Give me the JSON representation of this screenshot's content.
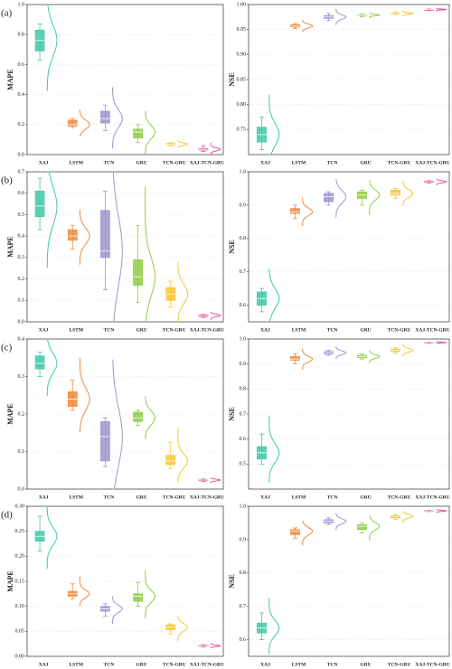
{
  "chart_data": [
    {
      "type": "box",
      "panel": "(a)",
      "ylabel": "MAPE",
      "categories": [
        "XAJ",
        "LSTM",
        "TCN",
        "GRU",
        "TCN-GRU",
        "XAJ-TCN-GRU"
      ],
      "colors": [
        "#3ec9a7",
        "#f08a3c",
        "#9d94cc",
        "#8fcc45",
        "#f5c533",
        "#e0589a"
      ],
      "ylim": [
        0,
        1
      ],
      "yticks": [
        {
          "value": 0,
          "label": "0.0"
        },
        0.2,
        0.4,
        0.6,
        0.8,
        {
          "value": 1,
          "label": "1.0"
        }
      ],
      "boxes": [
        {
          "min": 0.63,
          "q1": 0.69,
          "median": 0.76,
          "q3": 0.83,
          "max": 0.87
        },
        {
          "min": 0.18,
          "q1": 0.19,
          "median": 0.2,
          "q3": 0.23,
          "max": 0.24
        },
        {
          "min": 0.16,
          "q1": 0.21,
          "median": 0.24,
          "q3": 0.29,
          "max": 0.33
        },
        {
          "min": 0.08,
          "q1": 0.11,
          "median": 0.15,
          "q3": 0.17,
          "max": 0.2
        },
        {
          "min": 0.06,
          "q1": 0.065,
          "median": 0.07,
          "q3": 0.075,
          "max": 0.08
        },
        {
          "min": 0.02,
          "q1": 0.03,
          "median": 0.035,
          "q3": 0.04,
          "max": 0.06
        }
      ]
    },
    {
      "type": "box",
      "ylabel": "NSE",
      "categories": [
        "XAJ",
        "LSTM",
        "TCN",
        "GRU",
        "TCN-GRU",
        "XAJ-TCN-GRU"
      ],
      "colors": [
        "#3ec9a7",
        "#f08a3c",
        "#9d94cc",
        "#8fcc45",
        "#f5c533",
        "#e0589a"
      ],
      "ylim": [
        0.7,
        1
      ],
      "yticks": [
        0.75,
        {
          "value": 0.8,
          "label": "0.80"
        },
        0.85,
        {
          "value": 0.9,
          "label": "0.90"
        },
        0.95,
        {
          "value": 1,
          "label": "1.00"
        }
      ],
      "boxes": [
        {
          "min": 0.71,
          "q1": 0.725,
          "median": 0.74,
          "q3": 0.755,
          "max": 0.775
        },
        {
          "min": 0.952,
          "q1": 0.955,
          "median": 0.957,
          "q3": 0.96,
          "max": 0.962
        },
        {
          "min": 0.968,
          "q1": 0.972,
          "median": 0.975,
          "q3": 0.978,
          "max": 0.982
        },
        {
          "min": 0.976,
          "q1": 0.978,
          "median": 0.979,
          "q3": 0.98,
          "max": 0.981
        },
        {
          "min": 0.98,
          "q1": 0.981,
          "median": 0.982,
          "q3": 0.983,
          "max": 0.985
        },
        {
          "min": 0.988,
          "q1": 0.989,
          "median": 0.99,
          "q3": 0.99,
          "max": 0.991
        }
      ]
    },
    {
      "type": "box",
      "panel": "(b)",
      "ylabel": "MAPE",
      "categories": [
        "XAJ",
        "LSTM",
        "TCN",
        "GRU",
        "TCN-GRU",
        "XAJ-TCN-GRU"
      ],
      "colors": [
        "#3ec9a7",
        "#f08a3c",
        "#9d94cc",
        "#8fcc45",
        "#f5c533",
        "#e0589a"
      ],
      "ylim": [
        0,
        0.7
      ],
      "yticks": [
        {
          "value": 0,
          "label": "0.0"
        },
        0.1,
        0.2,
        0.3,
        0.4,
        0.5,
        0.6,
        0.7
      ],
      "boxes": [
        {
          "min": 0.43,
          "q1": 0.49,
          "median": 0.54,
          "q3": 0.61,
          "max": 0.67
        },
        {
          "min": 0.34,
          "q1": 0.38,
          "median": 0.4,
          "q3": 0.43,
          "max": 0.45
        },
        {
          "min": 0.15,
          "q1": 0.3,
          "median": 0.33,
          "q3": 0.52,
          "max": 0.61
        },
        {
          "min": 0.09,
          "q1": 0.17,
          "median": 0.21,
          "q3": 0.29,
          "max": 0.45
        },
        {
          "min": 0.07,
          "q1": 0.1,
          "median": 0.13,
          "q3": 0.16,
          "max": 0.19
        },
        {
          "min": 0.02,
          "q1": 0.025,
          "median": 0.03,
          "q3": 0.033,
          "max": 0.035
        }
      ]
    },
    {
      "type": "box",
      "ylabel": "NSE",
      "categories": [
        "XAJ",
        "LSTM",
        "TCN",
        "GRU",
        "TCN-GRU",
        "XAJ-TCN-GRU"
      ],
      "colors": [
        "#3ec9a7",
        "#f08a3c",
        "#9d94cc",
        "#8fcc45",
        "#f5c533",
        "#e0589a"
      ],
      "ylim": [
        0.55,
        1
      ],
      "yticks": [
        0.6,
        0.7,
        0.8,
        0.9,
        {
          "value": 1,
          "label": "1.0"
        }
      ],
      "boxes": [
        {
          "min": 0.58,
          "q1": 0.6,
          "median": 0.62,
          "q3": 0.64,
          "max": 0.65
        },
        {
          "min": 0.86,
          "q1": 0.875,
          "median": 0.88,
          "q3": 0.89,
          "max": 0.9
        },
        {
          "min": 0.9,
          "q1": 0.91,
          "median": 0.925,
          "q3": 0.935,
          "max": 0.94
        },
        {
          "min": 0.9,
          "q1": 0.92,
          "median": 0.93,
          "q3": 0.94,
          "max": 0.945
        },
        {
          "min": 0.92,
          "q1": 0.93,
          "median": 0.935,
          "q3": 0.945,
          "max": 0.95
        },
        {
          "min": 0.966,
          "q1": 0.968,
          "median": 0.97,
          "q3": 0.972,
          "max": 0.973
        }
      ]
    },
    {
      "type": "box",
      "panel": "(c)",
      "ylabel": "MAPE",
      "categories": [
        "XAJ",
        "LSTM",
        "TCN",
        "GRU",
        "TCN-GRU",
        "XAJ-TCN-GRU"
      ],
      "colors": [
        "#3ec9a7",
        "#f08a3c",
        "#9d94cc",
        "#8fcc45",
        "#f5c533",
        "#e0589a"
      ],
      "ylim": [
        0,
        0.4
      ],
      "yticks": [
        {
          "value": 0,
          "label": "0.0"
        },
        0.1,
        0.2,
        0.3,
        0.4
      ],
      "boxes": [
        {
          "min": 0.3,
          "q1": 0.32,
          "median": 0.335,
          "q3": 0.355,
          "max": 0.365
        },
        {
          "min": 0.21,
          "q1": 0.22,
          "median": 0.24,
          "q3": 0.26,
          "max": 0.29
        },
        {
          "min": 0.06,
          "q1": 0.075,
          "median": 0.14,
          "q3": 0.18,
          "max": 0.19
        },
        {
          "min": 0.17,
          "q1": 0.18,
          "median": 0.19,
          "q3": 0.205,
          "max": 0.21
        },
        {
          "min": 0.055,
          "q1": 0.065,
          "median": 0.075,
          "q3": 0.09,
          "max": 0.125
        },
        {
          "min": 0.02,
          "q1": 0.022,
          "median": 0.024,
          "q3": 0.025,
          "max": 0.027
        }
      ]
    },
    {
      "type": "box",
      "ylabel": "NSE",
      "categories": [
        "XAJ",
        "LSTM",
        "TCN",
        "GRU",
        "TCN-GRU",
        "XAJ-TCN-GRU"
      ],
      "colors": [
        "#3ec9a7",
        "#f08a3c",
        "#9d94cc",
        "#8fcc45",
        "#f5c533",
        "#e0589a"
      ],
      "ylim": [
        0.4,
        1
      ],
      "yticks": [
        0.5,
        0.6,
        0.7,
        0.8,
        0.9,
        {
          "value": 1,
          "label": "1.0"
        }
      ],
      "boxes": [
        {
          "min": 0.5,
          "q1": 0.52,
          "median": 0.545,
          "q3": 0.57,
          "max": 0.62
        },
        {
          "min": 0.9,
          "q1": 0.915,
          "median": 0.92,
          "q3": 0.93,
          "max": 0.94
        },
        {
          "min": 0.935,
          "q1": 0.94,
          "median": 0.945,
          "q3": 0.95,
          "max": 0.955
        },
        {
          "min": 0.92,
          "q1": 0.925,
          "median": 0.93,
          "q3": 0.935,
          "max": 0.94
        },
        {
          "min": 0.945,
          "q1": 0.95,
          "median": 0.955,
          "q3": 0.96,
          "max": 0.965
        },
        {
          "min": 0.983,
          "q1": 0.985,
          "median": 0.986,
          "q3": 0.987,
          "max": 0.988
        }
      ]
    },
    {
      "type": "box",
      "panel": "(d)",
      "ylabel": "MAPE",
      "categories": [
        "XAJ",
        "LSTM",
        "TCN",
        "GRU",
        "TCN-GRU",
        "XAJ-TCN-GRU"
      ],
      "colors": [
        "#3ec9a7",
        "#f08a3c",
        "#9d94cc",
        "#8fcc45",
        "#f5c533",
        "#e0589a"
      ],
      "ylim": [
        0,
        0.3
      ],
      "yticks": [
        {
          "value": 0,
          "label": "0.00"
        },
        0.05,
        {
          "value": 0.1,
          "label": "0.10"
        },
        0.15,
        {
          "value": 0.2,
          "label": "0.20"
        },
        0.25,
        {
          "value": 0.3,
          "label": "0.30"
        }
      ],
      "boxes": [
        {
          "min": 0.21,
          "q1": 0.23,
          "median": 0.24,
          "q3": 0.25,
          "max": 0.28
        },
        {
          "min": 0.115,
          "q1": 0.12,
          "median": 0.125,
          "q3": 0.13,
          "max": 0.145
        },
        {
          "min": 0.08,
          "q1": 0.09,
          "median": 0.095,
          "q3": 0.1,
          "max": 0.105
        },
        {
          "min": 0.1,
          "q1": 0.11,
          "median": 0.12,
          "q3": 0.125,
          "max": 0.148
        },
        {
          "min": 0.045,
          "q1": 0.053,
          "median": 0.058,
          "q3": 0.063,
          "max": 0.065
        },
        {
          "min": 0.019,
          "q1": 0.02,
          "median": 0.021,
          "q3": 0.022,
          "max": 0.023
        }
      ]
    },
    {
      "type": "box",
      "ylabel": "NSE",
      "categories": [
        "XAJ",
        "LSTM",
        "TCN",
        "GRU",
        "TCN-GRU",
        "XAJ-TCN-GRU"
      ],
      "colors": [
        "#3ec9a7",
        "#f08a3c",
        "#9d94cc",
        "#8fcc45",
        "#f5c533",
        "#e0589a"
      ],
      "ylim": [
        0.55,
        1
      ],
      "yticks": [
        0.6,
        0.7,
        0.8,
        0.9,
        {
          "value": 1,
          "label": "1.0"
        }
      ],
      "boxes": [
        {
          "min": 0.6,
          "q1": 0.62,
          "median": 0.635,
          "q3": 0.65,
          "max": 0.68
        },
        {
          "min": 0.905,
          "q1": 0.915,
          "median": 0.925,
          "q3": 0.93,
          "max": 0.935
        },
        {
          "min": 0.945,
          "q1": 0.95,
          "median": 0.955,
          "q3": 0.96,
          "max": 0.965
        },
        {
          "min": 0.92,
          "q1": 0.93,
          "median": 0.94,
          "q3": 0.945,
          "max": 0.95
        },
        {
          "min": 0.96,
          "q1": 0.965,
          "median": 0.97,
          "q3": 0.972,
          "max": 0.975
        },
        {
          "min": 0.984,
          "q1": 0.985,
          "median": 0.986,
          "q3": 0.987,
          "max": 0.988
        }
      ]
    }
  ]
}
